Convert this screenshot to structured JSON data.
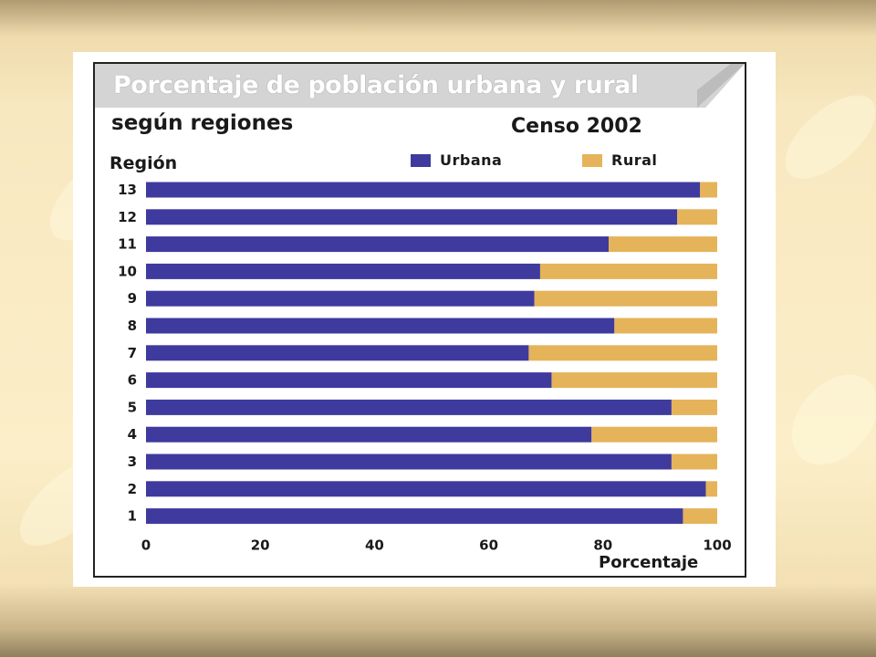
{
  "colors": {
    "urban": "#3f3a9e",
    "rural": "#e5b35a"
  },
  "chart_data": {
    "type": "bar",
    "orientation": "horizontal",
    "stacked": true,
    "title": "Porcentaje de población urbana y rural",
    "subtitle": "según regiones",
    "census_label": "Censo 2002",
    "ylabel": "Región",
    "xlabel": "Porcentaje",
    "xlim": [
      0,
      100
    ],
    "x_ticks": [
      "0",
      "20",
      "40",
      "60",
      "80",
      "100"
    ],
    "categories": [
      "13",
      "12",
      "11",
      "10",
      "9",
      "8",
      "7",
      "6",
      "5",
      "4",
      "3",
      "2",
      "1"
    ],
    "series": [
      {
        "name": "Urbana",
        "color_key": "urban",
        "values": [
          97,
          93,
          81,
          69,
          68,
          82,
          67,
          71,
          92,
          78,
          92,
          98,
          94
        ]
      },
      {
        "name": "Rural",
        "color_key": "rural",
        "values": [
          3,
          7,
          19,
          31,
          32,
          18,
          33,
          29,
          8,
          22,
          8,
          2,
          6
        ]
      }
    ],
    "legend_position": "top-right",
    "grid": false
  }
}
